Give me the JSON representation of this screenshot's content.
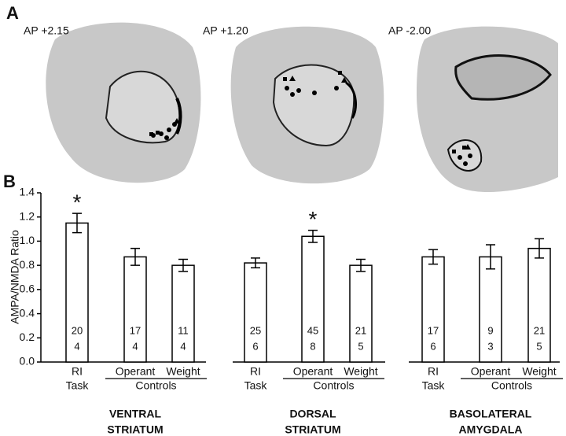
{
  "panel_a": {
    "label": "A",
    "sections": [
      "AP +2.15",
      "AP +1.20",
      "AP -2.00"
    ]
  },
  "chart_data": {
    "type": "bar",
    "panel_label": "B",
    "ylabel": "AMPA/NMDA Ratio",
    "ylim": [
      0,
      1.4
    ],
    "yticks": [
      {
        "value": 0,
        "label": "0.0"
      },
      0.2,
      0.4,
      0.6,
      0.8,
      {
        "value": 1,
        "label": "1.0"
      },
      1.2,
      1.4
    ],
    "color": "#ffffff",
    "categories": [
      [
        "RI",
        "Task"
      ],
      [
        "Operant"
      ],
      [
        "Weight"
      ],
      [
        "RI",
        "Task"
      ],
      [
        "Operant"
      ],
      [
        "Weight"
      ],
      [
        "RI",
        "Task"
      ],
      [
        "Operant"
      ],
      [
        "Weight"
      ]
    ],
    "values": [
      1.15,
      0.87,
      0.8,
      0.82,
      1.04,
      0.8,
      0.87,
      0.87,
      0.94
    ],
    "errors": [
      0.08,
      0.07,
      0.05,
      0.04,
      0.05,
      0.05,
      0.06,
      0.1,
      0.08
    ],
    "significance": [
      "*",
      null,
      null,
      null,
      "*",
      null,
      null,
      null,
      null
    ],
    "n_cells": [
      20,
      17,
      11,
      25,
      45,
      21,
      17,
      9,
      21
    ],
    "n_animals": [
      4,
      4,
      4,
      6,
      8,
      5,
      6,
      3,
      5
    ],
    "subgroup_label": "Controls",
    "groups": [
      [
        "VENTRAL",
        "STRIATUM"
      ],
      [
        "DORSAL",
        "STRIATUM"
      ],
      [
        "BASOLATERAL",
        "AMYGDALA"
      ]
    ]
  }
}
